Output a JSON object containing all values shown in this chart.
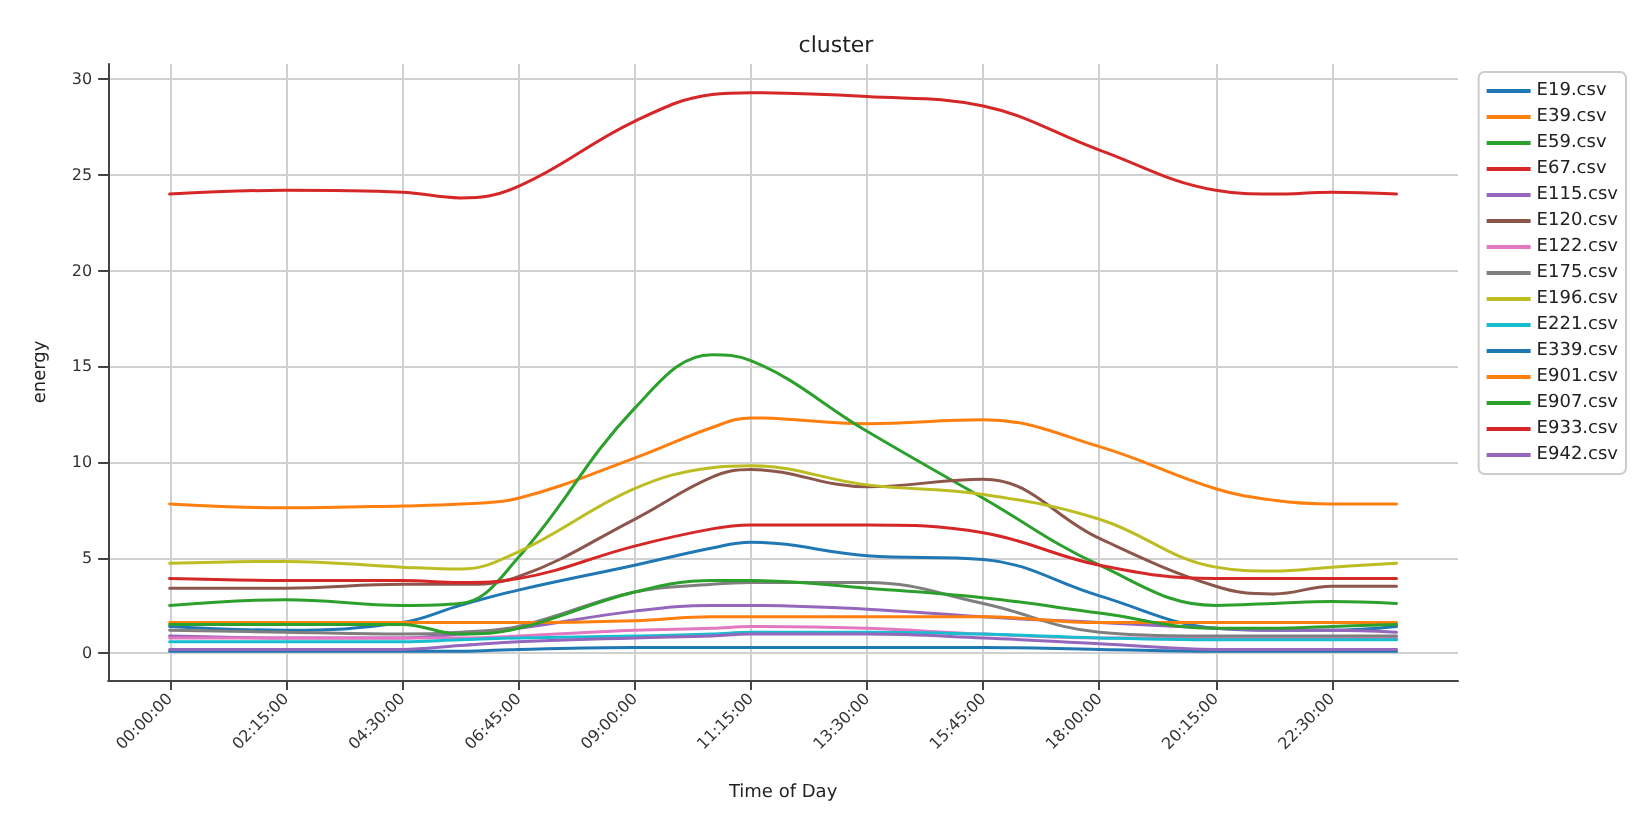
{
  "chart_data": {
    "type": "line",
    "title": "cluster",
    "xlabel": "Time of Day",
    "ylabel": "energy",
    "x": [
      0,
      2.25,
      4.5,
      5.625,
      6.75,
      9,
      10.5,
      11.25,
      13.5,
      15.75,
      18,
      20.25,
      21.375,
      22.5,
      23.75
    ],
    "xlim": [
      -1.19,
      24.94
    ],
    "xticks": [
      {
        "value": 0,
        "label": "00:00:00"
      },
      {
        "value": 2.25,
        "label": "02:15:00"
      },
      {
        "value": 4.5,
        "label": "04:30:00"
      },
      {
        "value": 6.75,
        "label": "06:45:00"
      },
      {
        "value": 9,
        "label": "09:00:00"
      },
      {
        "value": 11.25,
        "label": "11:15:00"
      },
      {
        "value": 13.5,
        "label": "13:30:00"
      },
      {
        "value": 15.75,
        "label": "15:45:00"
      },
      {
        "value": 18,
        "label": "18:00:00"
      },
      {
        "value": 20.25,
        "label": "20:15:00"
      },
      {
        "value": 22.5,
        "label": "22:30:00"
      }
    ],
    "ylim": [
      -1.4,
      30.8
    ],
    "yticks": [
      0,
      5,
      10,
      15,
      20,
      25,
      30
    ],
    "grid": true,
    "legend": "right",
    "marker": "none",
    "line_style": "solid",
    "series": [
      {
        "name": "E19.csv",
        "color": "#1f77b4",
        "values": [
          1.4,
          1.2,
          1.6,
          2.5,
          3.3,
          4.6,
          5.5,
          5.8,
          5.1,
          4.9,
          3.0,
          1.3,
          1.2,
          1.2,
          1.4
        ]
      },
      {
        "name": "E39.csv",
        "color": "#ff7f0e",
        "values": [
          7.8,
          7.6,
          7.7,
          7.8,
          8.1,
          10.2,
          11.8,
          12.3,
          12.0,
          12.2,
          10.8,
          8.6,
          8.0,
          7.8,
          7.8
        ]
      },
      {
        "name": "E59.csv",
        "color": "#2ca02c",
        "values": [
          2.5,
          2.8,
          2.5,
          2.6,
          5.0,
          12.8,
          15.6,
          15.3,
          11.6,
          8.1,
          4.6,
          2.5,
          2.6,
          2.7,
          2.6
        ]
      },
      {
        "name": "E67.csv",
        "color": "#d62728",
        "values": [
          24.0,
          24.2,
          24.1,
          23.8,
          24.4,
          27.8,
          29.2,
          29.3,
          29.1,
          28.6,
          26.3,
          24.2,
          24.0,
          24.1,
          24.0
        ]
      },
      {
        "name": "E115.csv",
        "color": "#9467bd",
        "values": [
          0.9,
          0.8,
          0.8,
          1.0,
          1.3,
          2.2,
          2.5,
          2.5,
          2.3,
          1.9,
          1.6,
          1.3,
          1.2,
          1.2,
          1.1
        ]
      },
      {
        "name": "E120.csv",
        "color": "#8c564b",
        "values": [
          3.4,
          3.4,
          3.6,
          3.6,
          4.0,
          7.0,
          9.2,
          9.6,
          8.7,
          9.1,
          6.0,
          3.5,
          3.1,
          3.5,
          3.5
        ]
      },
      {
        "name": "E122.csv",
        "color": "#e377c2",
        "values": [
          0.8,
          0.8,
          0.8,
          0.8,
          0.9,
          1.2,
          1.3,
          1.4,
          1.3,
          1.0,
          0.8,
          0.8,
          0.8,
          0.8,
          0.8
        ]
      },
      {
        "name": "E175.csv",
        "color": "#7f7f7f",
        "values": [
          1.2,
          1.1,
          1.0,
          1.1,
          1.4,
          3.2,
          3.6,
          3.7,
          3.7,
          2.6,
          1.1,
          0.9,
          0.9,
          0.9,
          0.9
        ]
      },
      {
        "name": "E196.csv",
        "color": "#bcbd22",
        "values": [
          4.7,
          4.8,
          4.5,
          4.4,
          5.3,
          8.6,
          9.7,
          9.8,
          8.8,
          8.3,
          7.0,
          4.5,
          4.3,
          4.5,
          4.7
        ]
      },
      {
        "name": "E221.csv",
        "color": "#17becf",
        "values": [
          0.6,
          0.6,
          0.6,
          0.7,
          0.8,
          0.9,
          1.0,
          1.1,
          1.1,
          1.0,
          0.8,
          0.7,
          0.7,
          0.7,
          0.7
        ]
      },
      {
        "name": "E339.csv",
        "color": "#1f77b4",
        "values": [
          0.1,
          0.1,
          0.1,
          0.1,
          0.2,
          0.3,
          0.3,
          0.3,
          0.3,
          0.3,
          0.2,
          0.1,
          0.1,
          0.1,
          0.1
        ]
      },
      {
        "name": "E901.csv",
        "color": "#ff7f0e",
        "values": [
          1.6,
          1.6,
          1.6,
          1.6,
          1.6,
          1.7,
          1.9,
          1.9,
          1.9,
          1.9,
          1.6,
          1.6,
          1.6,
          1.6,
          1.6
        ]
      },
      {
        "name": "E907.csv",
        "color": "#2ca02c",
        "values": [
          1.5,
          1.5,
          1.5,
          1.0,
          1.3,
          3.2,
          3.8,
          3.8,
          3.4,
          2.9,
          2.1,
          1.3,
          1.3,
          1.4,
          1.5
        ]
      },
      {
        "name": "E933.csv",
        "color": "#d62728",
        "values": [
          3.9,
          3.8,
          3.8,
          3.7,
          3.9,
          5.6,
          6.5,
          6.7,
          6.7,
          6.3,
          4.6,
          3.9,
          3.9,
          3.9,
          3.9
        ]
      },
      {
        "name": "E942.csv",
        "color": "#9467bd",
        "values": [
          0.2,
          0.2,
          0.2,
          0.4,
          0.6,
          0.8,
          0.9,
          1.0,
          1.0,
          0.8,
          0.5,
          0.2,
          0.2,
          0.2,
          0.2
        ]
      }
    ]
  }
}
